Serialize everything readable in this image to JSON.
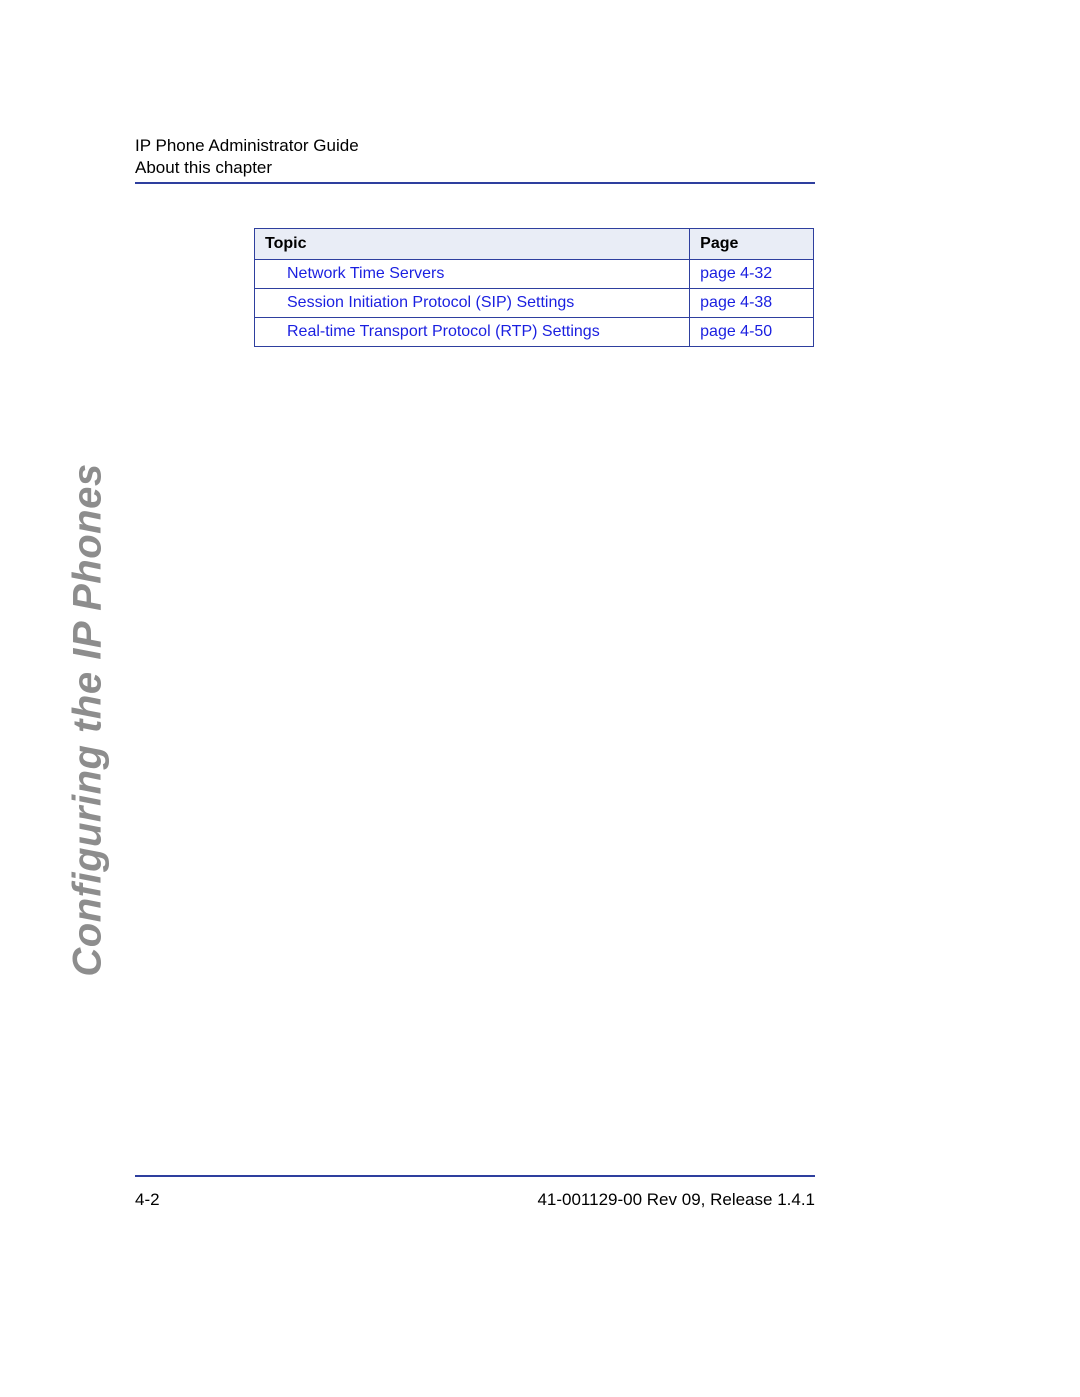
{
  "colors": {
    "rule": "#2e3f9e",
    "header_bg": "#e9edf6",
    "table_border": "#2e3f9e",
    "link": "#1a1fe0",
    "side_title": "#8d8d8d",
    "text": "#000000"
  },
  "header": {
    "line1": "IP Phone Administrator Guide",
    "line2": "About this chapter"
  },
  "side_title": "Configuring the IP Phones",
  "toc": {
    "columns": [
      "Topic",
      "Page"
    ],
    "rows": [
      {
        "topic": "Network Time Servers",
        "page": "page 4-32"
      },
      {
        "topic": "Session Initiation Protocol (SIP) Settings",
        "page": "page 4-38"
      },
      {
        "topic": "Real-time Transport Protocol (RTP) Settings",
        "page": "page 4-50"
      }
    ]
  },
  "footer": {
    "left": "4-2",
    "right": "41-001129-00 Rev 09, Release 1.4.1"
  }
}
